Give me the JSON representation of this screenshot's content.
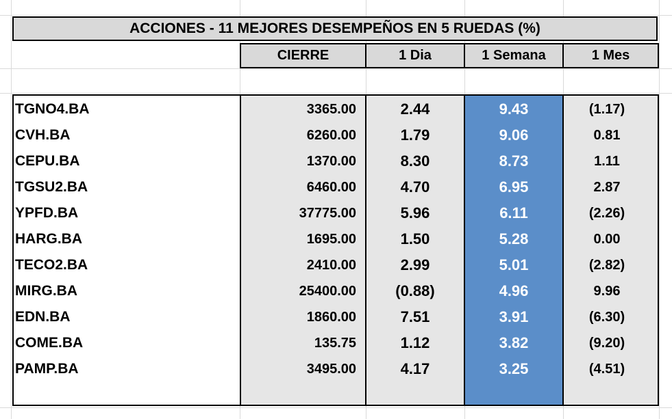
{
  "title": "ACCIONES   - 11  MEJORES DESEMPEÑOS EN 5 RUEDAS (%)",
  "headers": {
    "cierre": "CIERRE",
    "dia": "1 Dia",
    "semana": "1 Semana",
    "mes": "1 Mes"
  },
  "colors": {
    "header_bg": "#d9d9d9",
    "column_bg": "#e6e6e6",
    "highlight_column": "#5b8ec9",
    "highlight_text": "#ffffff"
  },
  "rows": [
    {
      "ticker": "TGNO4.BA",
      "cierre": "3365.00",
      "dia": "2.44",
      "semana": "9.43",
      "mes": "(1.17)"
    },
    {
      "ticker": "CVH.BA",
      "cierre": "6260.00",
      "dia": "1.79",
      "semana": "9.06",
      "mes": "0.81"
    },
    {
      "ticker": "CEPU.BA",
      "cierre": "1370.00",
      "dia": "8.30",
      "semana": "8.73",
      "mes": "1.11"
    },
    {
      "ticker": "TGSU2.BA",
      "cierre": "6460.00",
      "dia": "4.70",
      "semana": "6.95",
      "mes": "2.87"
    },
    {
      "ticker": "YPFD.BA",
      "cierre": "37775.00",
      "dia": "5.96",
      "semana": "6.11",
      "mes": "(2.26)"
    },
    {
      "ticker": "HARG.BA",
      "cierre": "1695.00",
      "dia": "1.50",
      "semana": "5.28",
      "mes": "0.00"
    },
    {
      "ticker": "TECO2.BA",
      "cierre": "2410.00",
      "dia": "2.99",
      "semana": "5.01",
      "mes": "(2.82)"
    },
    {
      "ticker": "MIRG.BA",
      "cierre": "25400.00",
      "dia": "(0.88)",
      "semana": "4.96",
      "mes": "9.96"
    },
    {
      "ticker": "EDN.BA",
      "cierre": "1860.00",
      "dia": "7.51",
      "semana": "3.91",
      "mes": "(6.30)"
    },
    {
      "ticker": "COME.BA",
      "cierre": "135.75",
      "dia": "1.12",
      "semana": "3.82",
      "mes": "(9.20)"
    },
    {
      "ticker": "PAMP.BA",
      "cierre": "3495.00",
      "dia": "4.17",
      "semana": "3.25",
      "mes": "(4.51)"
    }
  ]
}
